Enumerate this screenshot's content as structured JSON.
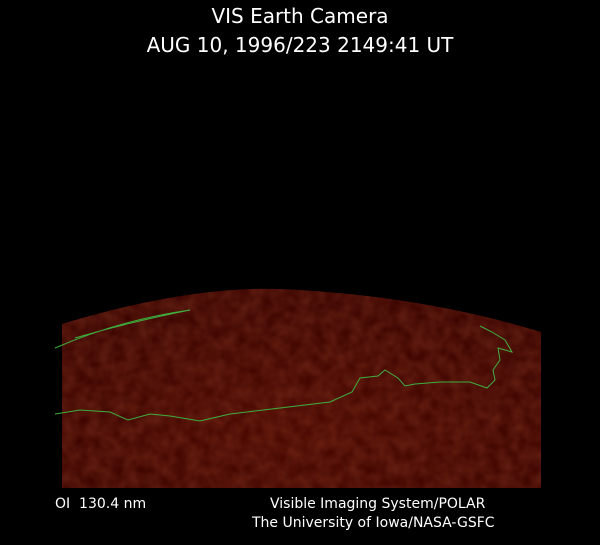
{
  "header": {
    "title": "VIS Earth Camera",
    "timestamp": "AUG 10, 1996/223 2149:41 UT"
  },
  "footer": {
    "filter": "OI  130.4 nm",
    "instrument": "Visible Imaging System/POLAR",
    "institution": "The University of Iowa/NASA-GSFC"
  }
}
